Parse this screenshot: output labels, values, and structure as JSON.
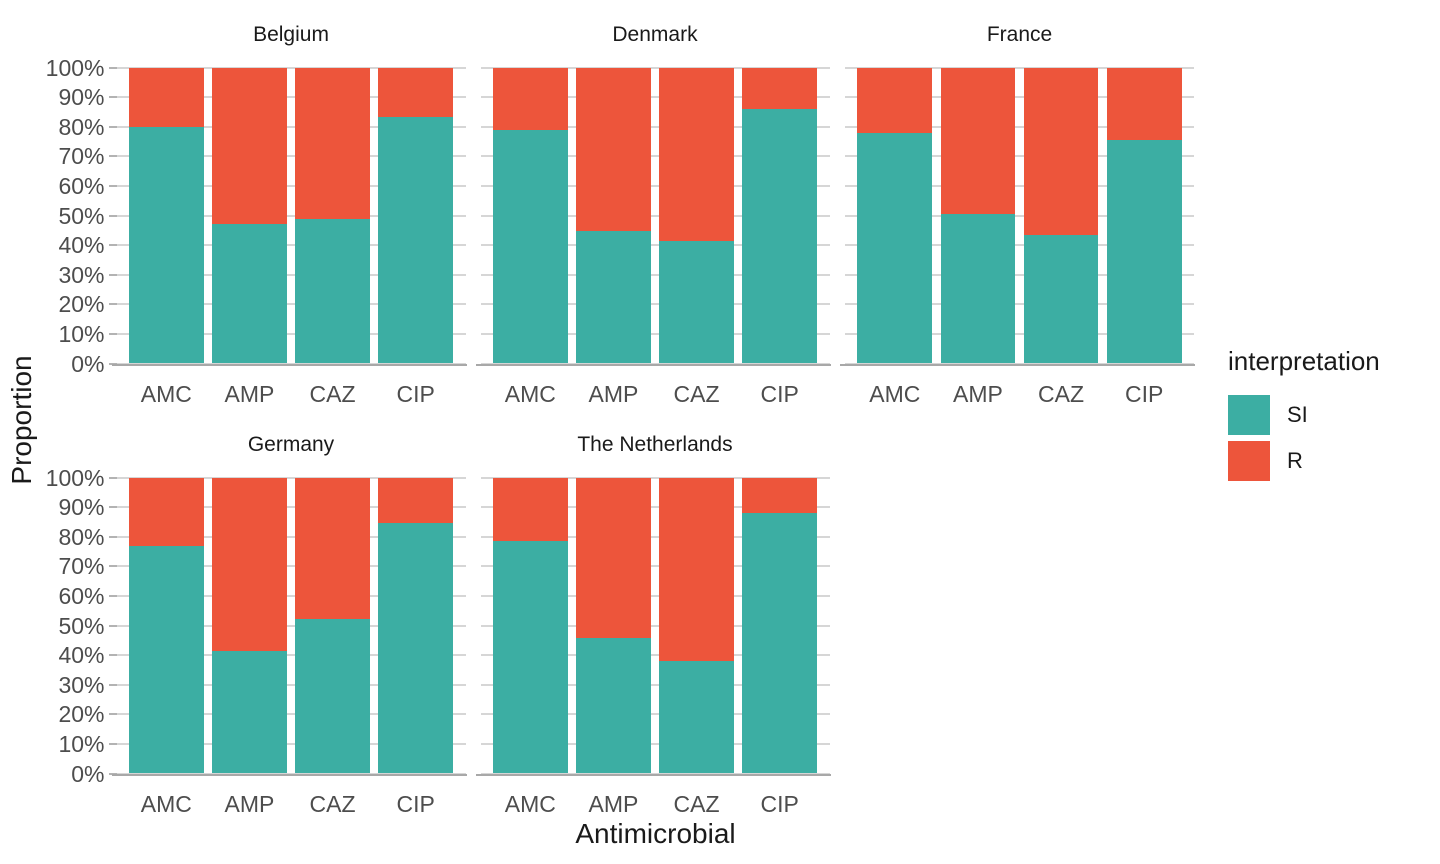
{
  "figure": {
    "y_axis_title": "Proportion",
    "x_axis_title": "Antimicrobial",
    "background_color": "#FFFFFF",
    "gridline_color": "#D6D6D6",
    "axis_line_color": "#A8A8A8"
  },
  "legend": {
    "title": "interpretation",
    "items": [
      {
        "label": "SI",
        "color": "#3CAEA3"
      },
      {
        "label": "R",
        "color": "#ED553B"
      }
    ]
  },
  "chart_data": {
    "type": "bar",
    "stacked": true,
    "percent_scale": true,
    "xlabel": "Antimicrobial",
    "ylabel": "Proportion",
    "ylim": [
      0,
      100
    ],
    "grid": true,
    "legend_position": "right",
    "legend_title": "interpretation",
    "categories": [
      "AMC",
      "AMP",
      "CAZ",
      "CIP"
    ],
    "y_tick_labels": [
      "0%",
      "10%",
      "20%",
      "30%",
      "40%",
      "50%",
      "60%",
      "70%",
      "80%",
      "90%",
      "100%"
    ],
    "series_order": [
      "SI",
      "R"
    ],
    "series_colors": {
      "SI": "#3CAEA3",
      "R": "#ED553B"
    },
    "facets": [
      {
        "title": "Belgium",
        "row": 0,
        "col": 0,
        "show_y_axis": true,
        "series": [
          {
            "name": "SI",
            "values": [
              80.0,
              47.0,
              48.7,
              83.2
            ]
          },
          {
            "name": "R",
            "values": [
              20.0,
              53.0,
              51.3,
              16.8
            ]
          }
        ]
      },
      {
        "title": "Denmark",
        "row": 0,
        "col": 1,
        "show_y_axis": false,
        "series": [
          {
            "name": "SI",
            "values": [
              78.8,
              44.9,
              41.3,
              86.0
            ]
          },
          {
            "name": "R",
            "values": [
              21.2,
              55.1,
              58.7,
              14.0
            ]
          }
        ]
      },
      {
        "title": "France",
        "row": 0,
        "col": 2,
        "show_y_axis": false,
        "series": [
          {
            "name": "SI",
            "values": [
              78.0,
              50.5,
              43.5,
              75.6
            ]
          },
          {
            "name": "R",
            "values": [
              22.0,
              49.5,
              56.5,
              24.4
            ]
          }
        ]
      },
      {
        "title": "Germany",
        "row": 1,
        "col": 0,
        "show_y_axis": true,
        "series": [
          {
            "name": "SI",
            "values": [
              76.8,
              41.5,
              52.3,
              84.5
            ]
          },
          {
            "name": "R",
            "values": [
              23.2,
              58.5,
              47.7,
              15.5
            ]
          }
        ]
      },
      {
        "title": "The Netherlands",
        "row": 1,
        "col": 1,
        "show_y_axis": false,
        "series": [
          {
            "name": "SI",
            "values": [
              78.6,
              45.8,
              38.1,
              88.0
            ]
          },
          {
            "name": "R",
            "values": [
              21.4,
              54.2,
              61.9,
              12.0
            ]
          }
        ]
      }
    ]
  }
}
